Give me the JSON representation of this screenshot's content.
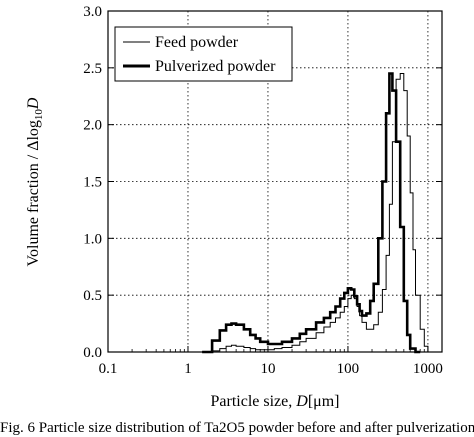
{
  "chart_data": {
    "type": "line",
    "xscale": "log",
    "xlim": [
      0.1,
      1500
    ],
    "ylim": [
      0,
      3.0
    ],
    "x_ticks": [
      "0.1",
      "1",
      "10",
      "100",
      "1000"
    ],
    "y_ticks": [
      "0.0",
      "0.5",
      "1.0",
      "1.5",
      "2.0",
      "2.5",
      "3.0"
    ],
    "xlabel_main": "Particle size, ",
    "xlabel_italic": "D",
    "xlabel_unit": "[μm]",
    "ylabel_main": "Volume fraction / Δlog",
    "ylabel_sub": "10",
    "ylabel_italic": "D",
    "grid": "dotted",
    "legend_placement": "top-left",
    "series": [
      {
        "name": "Feed powder",
        "style": "thin",
        "x": [
          1.5,
          2,
          2.5,
          3,
          3.5,
          4,
          5,
          6,
          7,
          8,
          10,
          12,
          15,
          20,
          25,
          30,
          40,
          50,
          60,
          70,
          80,
          90,
          100,
          110,
          120,
          130,
          140,
          150,
          170,
          190,
          210,
          240,
          270,
          300,
          330,
          360,
          400,
          450,
          500,
          550,
          600,
          650,
          700,
          800,
          900,
          1000
        ],
        "values": [
          0.0,
          0.01,
          0.03,
          0.05,
          0.06,
          0.05,
          0.04,
          0.03,
          0.02,
          0.02,
          0.02,
          0.03,
          0.04,
          0.06,
          0.09,
          0.12,
          0.17,
          0.22,
          0.26,
          0.3,
          0.35,
          0.4,
          0.47,
          0.5,
          0.47,
          0.4,
          0.32,
          0.26,
          0.2,
          0.2,
          0.24,
          0.35,
          0.55,
          0.85,
          1.3,
          1.85,
          2.4,
          2.45,
          2.3,
          1.9,
          1.4,
          0.9,
          0.5,
          0.2,
          0.05,
          0.0
        ]
      },
      {
        "name": "Pulverized powder",
        "style": "thick",
        "x": [
          1.5,
          2,
          2.5,
          3,
          3.5,
          4,
          5,
          6,
          7,
          8,
          10,
          12,
          15,
          20,
          25,
          30,
          40,
          50,
          60,
          70,
          80,
          90,
          100,
          110,
          120,
          130,
          140,
          150,
          170,
          190,
          210,
          240,
          270,
          300,
          330,
          360,
          400,
          450,
          500,
          550,
          600,
          700,
          800
        ],
        "values": [
          0.0,
          0.1,
          0.19,
          0.24,
          0.25,
          0.24,
          0.2,
          0.15,
          0.12,
          0.09,
          0.07,
          0.07,
          0.09,
          0.12,
          0.16,
          0.2,
          0.26,
          0.3,
          0.35,
          0.4,
          0.47,
          0.52,
          0.56,
          0.55,
          0.49,
          0.42,
          0.36,
          0.32,
          0.34,
          0.45,
          0.6,
          1.0,
          1.5,
          2.1,
          2.45,
          2.3,
          1.85,
          1.1,
          0.45,
          0.15,
          0.03,
          0.0,
          0.0
        ]
      }
    ]
  },
  "caption": "Fig. 6   Particle size distribution of Ta2O5 powder before and after pulverization."
}
